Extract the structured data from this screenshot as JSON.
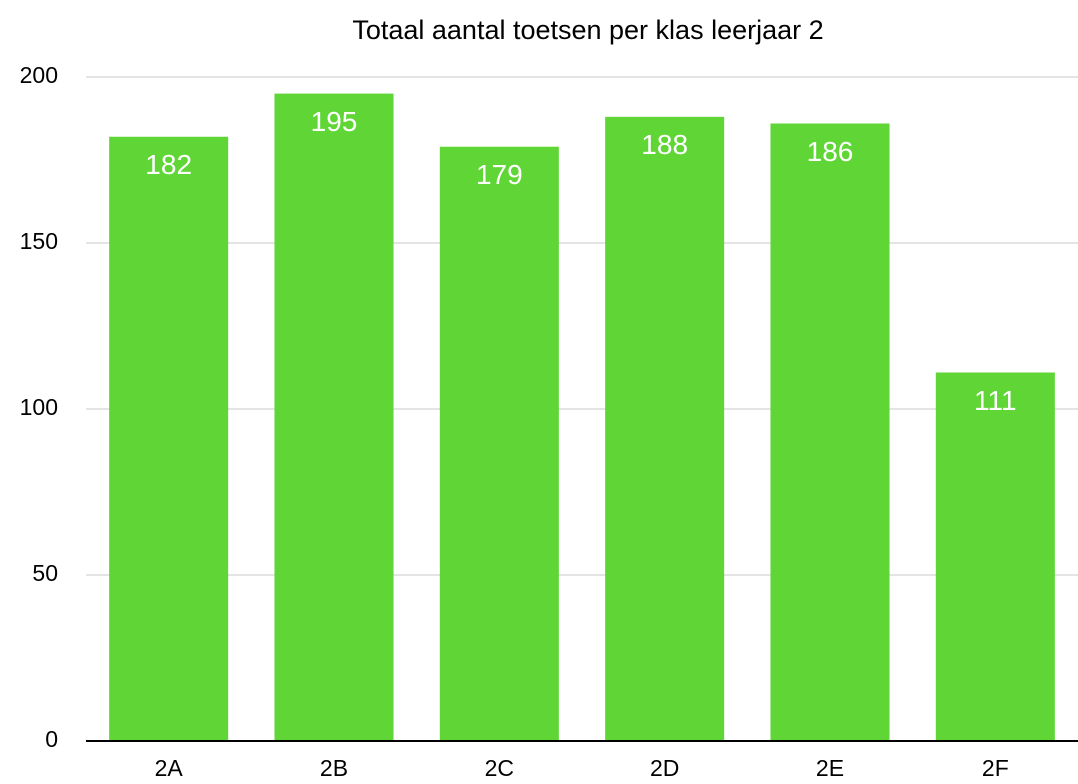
{
  "chart_data": {
    "type": "bar",
    "title": "Totaal aantal toetsen per klas leerjaar 2",
    "categories": [
      "2A",
      "2B",
      "2C",
      "2D",
      "2E",
      "2F"
    ],
    "values": [
      182,
      195,
      179,
      188,
      186,
      111
    ],
    "color": "#5fd635",
    "ylim": [
      0,
      200
    ],
    "yticks": [
      0,
      50,
      100,
      150,
      200
    ],
    "grid": true
  }
}
